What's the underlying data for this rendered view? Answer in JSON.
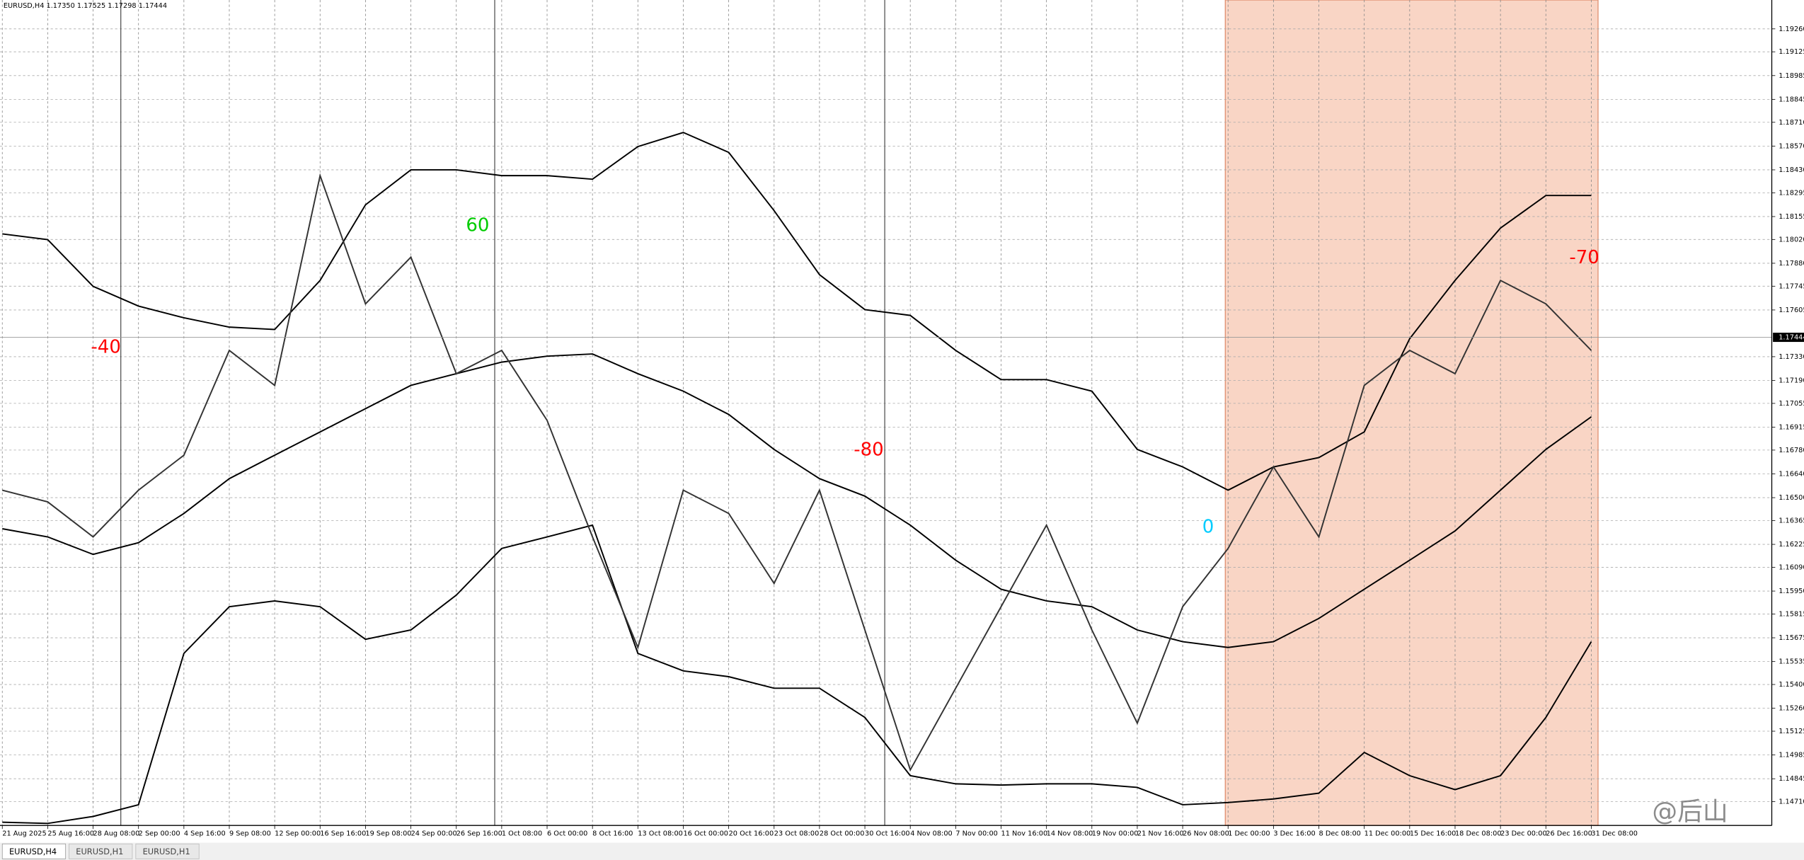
{
  "header": "EURUSD,H4  1.17350 1.17525 1.17298 1.17444",
  "tabs": [
    "EURUSD,H4",
    "EURUSD,H1",
    "EURUSD,H1"
  ],
  "watermark": "@后山",
  "chart_data": {
    "type": "line",
    "categories": [
      "21 Aug 2025",
      "25 Aug 16:00",
      "28 Aug 08:00",
      "2 Sep 00:00",
      "4 Sep 16:00",
      "9 Sep 08:00",
      "12 Sep 00:00",
      "16 Sep 16:00",
      "19 Sep 08:00",
      "24 Sep 00:00",
      "26 Sep 16:00",
      "1 Oct 08:00",
      "6 Oct 00:00",
      "8 Oct 16:00",
      "13 Oct 08:00",
      "16 Oct 00:00",
      "20 Oct 16:00",
      "23 Oct 08:00",
      "28 Oct 00:00",
      "30 Oct 16:00",
      "4 Nov 08:00",
      "7 Nov 00:00",
      "11 Nov 16:00",
      "14 Nov 08:00",
      "19 Nov 00:00",
      "21 Nov 16:00",
      "26 Nov 08:00",
      "1 Dec 00:00",
      "3 Dec 16:00",
      "8 Dec 08:00",
      "11 Dec 00:00",
      "15 Dec 16:00",
      "18 Dec 08:00",
      "23 Dec 00:00",
      "26 Dec 16:00",
      "31 Dec 08:00"
    ],
    "series": [
      {
        "color": "#000000",
        "values": [
          1.18053,
          1.18019,
          1.17744,
          1.17628,
          1.17559,
          1.17504,
          1.1749,
          1.17779,
          1.18224,
          1.1843,
          1.1843,
          1.18396,
          1.18396,
          1.18375,
          1.18567,
          1.1865,
          1.18533,
          1.1819,
          1.17813,
          1.17607,
          1.17573,
          1.17367,
          1.17195,
          1.17195,
          1.17127,
          1.16784,
          1.16681,
          1.16544,
          1.16681,
          1.16736,
          1.16887,
          1.17436,
          1.17779,
          1.18087,
          1.18279,
          1.18279
        ]
      },
      {
        "color": "#000000",
        "values": [
          1.16317,
          1.16269,
          1.16166,
          1.16235,
          1.16407,
          1.16612,
          1.1675,
          1.16887,
          1.17024,
          1.17161,
          1.1723,
          1.17298,
          1.17333,
          1.17346,
          1.1723,
          1.17127,
          1.1699,
          1.16784,
          1.16612,
          1.16509,
          1.16338,
          1.16132,
          1.15961,
          1.15892,
          1.15858,
          1.15721,
          1.15652,
          1.15618,
          1.15652,
          1.15789,
          1.15961,
          1.16132,
          1.16304,
          1.16544,
          1.16784,
          1.16976
        ]
      },
      {
        "color": "#000000",
        "values": [
          1.14589,
          1.14582,
          1.14623,
          1.14692,
          1.15583,
          1.15858,
          1.15892,
          1.15858,
          1.15666,
          1.15721,
          1.15926,
          1.16201,
          1.16269,
          1.16338,
          1.15583,
          1.1548,
          1.15446,
          1.15378,
          1.15378,
          1.15206,
          1.14863,
          1.14815,
          1.14808,
          1.14815,
          1.14815,
          1.14794,
          1.14692,
          1.14705,
          1.14726,
          1.1476,
          1.15,
          1.14863,
          1.14781,
          1.14863,
          1.15206,
          1.15652
        ]
      },
      {
        "color": "#333333",
        "values": [
          1.16544,
          1.16475,
          1.16269,
          1.16544,
          1.1675,
          1.17367,
          1.17161,
          1.18396,
          1.17641,
          1.17916,
          1.1723,
          1.17367,
          1.16955,
          1.16269,
          1.15618,
          1.16544,
          1.16407,
          1.15995,
          1.16544,
          1.15721,
          1.14897,
          1.15378,
          1.15858,
          1.16338,
          1.15721,
          1.15172,
          1.15858,
          1.16201,
          1.16681,
          1.16269,
          1.17161,
          1.17367,
          1.1723,
          1.17779,
          1.17641,
          1.17367
        ]
      }
    ],
    "last_price": 1.17444,
    "ylim": [
      1.1457,
      1.1943
    ],
    "yticks": [
      {
        "value": 1.1926,
        "label": "1.19260"
      },
      {
        "value": 1.19125,
        "label": "1.19125"
      },
      {
        "value": 1.18985,
        "label": "1.18985"
      },
      {
        "value": 1.18845,
        "label": "1.18845"
      },
      {
        "value": 1.1871,
        "label": "1.18710"
      },
      {
        "value": 1.1857,
        "label": "1.18570"
      },
      {
        "value": 1.1843,
        "label": "1.18430"
      },
      {
        "value": 1.18295,
        "label": "1.18295"
      },
      {
        "value": 1.18155,
        "label": "1.18155"
      },
      {
        "value": 1.1802,
        "label": "1.18020"
      },
      {
        "value": 1.1788,
        "label": "1.17880"
      },
      {
        "value": 1.17745,
        "label": "1.17745"
      },
      {
        "value": 1.17605,
        "label": "1.17605"
      },
      {
        "value": 1.1733,
        "label": "1.17330"
      },
      {
        "value": 1.1719,
        "label": "1.17190"
      },
      {
        "value": 1.17055,
        "label": "1.17055"
      },
      {
        "value": 1.16915,
        "label": "1.16915"
      },
      {
        "value": 1.1678,
        "label": "1.16780"
      },
      {
        "value": 1.1664,
        "label": "1.16640"
      },
      {
        "value": 1.165,
        "label": "1.16500"
      },
      {
        "value": 1.16365,
        "label": "1.16365"
      },
      {
        "value": 1.16225,
        "label": "1.16225"
      },
      {
        "value": 1.1609,
        "label": "1.16090"
      },
      {
        "value": 1.1595,
        "label": "1.15950"
      },
      {
        "value": 1.15815,
        "label": "1.15815"
      },
      {
        "value": 1.15675,
        "label": "1.15675"
      },
      {
        "value": 1.15535,
        "label": "1.15535"
      },
      {
        "value": 1.154,
        "label": "1.15400"
      },
      {
        "value": 1.1526,
        "label": "1.15260"
      },
      {
        "value": 1.15125,
        "label": "1.15125"
      },
      {
        "value": 1.14985,
        "label": "1.14985"
      },
      {
        "value": 1.14845,
        "label": "1.14845"
      },
      {
        "value": 1.1471,
        "label": "1.14710"
      }
    ],
    "grid": true,
    "annotations": [
      {
        "text": "-40",
        "color": "#ff0000"
      },
      {
        "text": "60",
        "color": "#00cc00"
      },
      {
        "text": "-80",
        "color": "#ff0000"
      },
      {
        "text": "0",
        "color": "#00ccff"
      },
      {
        "text": "-70",
        "color": "#ff0000"
      }
    ]
  }
}
